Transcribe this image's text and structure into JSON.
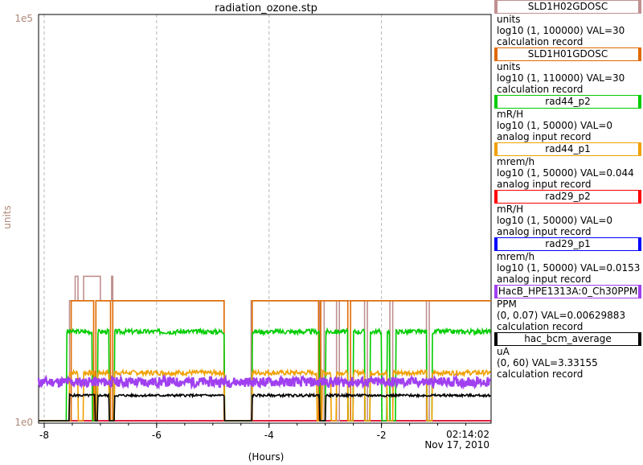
{
  "chart_data": {
    "type": "line",
    "title": "radiation_ozone.stp",
    "ylabel": "units",
    "xlabel": "(Hours)",
    "y_scale": "log",
    "ylim": [
      1,
      100000
    ],
    "xlim": [
      -8.1,
      -0.05
    ],
    "y_tick_labels": [
      "1e5",
      "1e0"
    ],
    "x_ticks": [
      -8,
      -6,
      -4,
      -2
    ],
    "timestamp": [
      "02:14:02",
      "Nov 17, 2010"
    ],
    "grid": true,
    "legend_position": "right",
    "series": [
      {
        "name": "SLD1H02GDOSC",
        "color": "#c09090",
        "kind": "step",
        "points": [
          [
            -8.1,
            1
          ],
          [
            -7.55,
            1
          ],
          [
            -7.55,
            30
          ],
          [
            -7.45,
            30
          ],
          [
            -7.45,
            60
          ],
          [
            -7.4,
            60
          ],
          [
            -7.4,
            30
          ],
          [
            -7.3,
            30
          ],
          [
            -7.3,
            60
          ],
          [
            -7.0,
            60
          ],
          [
            -7.0,
            30
          ],
          [
            -6.8,
            30
          ],
          [
            -6.8,
            60
          ],
          [
            -6.78,
            60
          ],
          [
            -6.78,
            30
          ],
          [
            -4.8,
            30
          ],
          [
            -4.8,
            1
          ],
          [
            -4.32,
            1
          ],
          [
            -4.32,
            30
          ],
          [
            -3.1,
            30
          ],
          [
            -3.1,
            1
          ],
          [
            -3.02,
            1
          ],
          [
            -3.02,
            30
          ],
          [
            -2.8,
            30
          ],
          [
            -2.8,
            1
          ],
          [
            -2.75,
            1
          ],
          [
            -2.75,
            30
          ],
          [
            -2.3,
            30
          ],
          [
            -2.3,
            1
          ],
          [
            -2.25,
            1
          ],
          [
            -2.25,
            30
          ],
          [
            -1.85,
            30
          ],
          [
            -1.85,
            1
          ],
          [
            -1.8,
            1
          ],
          [
            -1.8,
            30
          ],
          [
            -1.2,
            30
          ],
          [
            -1.2,
            1
          ],
          [
            -1.15,
            1
          ],
          [
            -1.15,
            30
          ],
          [
            -0.05,
            30
          ]
        ]
      },
      {
        "name": "SLD1H01GDOSC",
        "color": "#e06a00",
        "kind": "step",
        "points": [
          [
            -8.1,
            1
          ],
          [
            -7.52,
            1
          ],
          [
            -7.52,
            30
          ],
          [
            -7.12,
            30
          ],
          [
            -7.12,
            1
          ],
          [
            -7.08,
            1
          ],
          [
            -7.08,
            30
          ],
          [
            -6.82,
            30
          ],
          [
            -6.82,
            1
          ],
          [
            -6.78,
            1
          ],
          [
            -6.78,
            30
          ],
          [
            -4.8,
            30
          ],
          [
            -4.8,
            1
          ],
          [
            -4.3,
            1
          ],
          [
            -4.3,
            30
          ],
          [
            -3.12,
            30
          ],
          [
            -3.12,
            1
          ],
          [
            -3.08,
            1
          ],
          [
            -3.08,
            30
          ],
          [
            -2.6,
            30
          ],
          [
            -2.6,
            1
          ],
          [
            -2.55,
            1
          ],
          [
            -2.55,
            30
          ],
          [
            -0.05,
            30
          ]
        ]
      },
      {
        "name": "rad44_p2",
        "color": "#00cc00",
        "kind": "noisy",
        "level": 12.5,
        "gaps": [
          [
            -8.1,
            -7.6
          ],
          [
            -7.15,
            -7.05
          ],
          [
            -6.85,
            -6.75
          ],
          [
            -4.8,
            -4.3
          ],
          [
            -3.1,
            -3.0
          ],
          [
            -2.6,
            -2.5
          ],
          [
            -2.3,
            -2.2
          ],
          [
            -2.0,
            -1.9
          ],
          [
            -1.85,
            -1.75
          ],
          [
            -1.2,
            -1.1
          ],
          [
            -0.05,
            0
          ]
        ],
        "noise": 0.03,
        "seed": 3
      },
      {
        "name": "rad44_p1",
        "color": "#f0a000",
        "kind": "noisy",
        "level": 3.9,
        "gaps": [
          [
            -8.1,
            -7.55
          ],
          [
            -7.4,
            -7.3
          ],
          [
            -7.1,
            -7.05
          ],
          [
            -6.85,
            -6.75
          ],
          [
            -4.8,
            -4.3
          ],
          [
            -3.15,
            -3.05
          ],
          [
            -2.9,
            -2.8
          ],
          [
            -2.6,
            -2.5
          ],
          [
            -2.3,
            -2.2
          ],
          [
            -1.9,
            -1.8
          ],
          [
            -1.2,
            -1.1
          ],
          [
            -0.05,
            0
          ]
        ],
        "noise": 0.03,
        "seed": 7
      },
      {
        "name": "rad29_p2",
        "color": "#ff0000",
        "kind": "flat",
        "level": 1
      },
      {
        "name": "rad29_p1",
        "color": "#0000ff",
        "kind": "flat",
        "level": 1
      },
      {
        "name": "HacB_HPE1313A:0_Ch30PPM",
        "color": "#a040f0",
        "kind": "noisy",
        "level": 3.0,
        "gaps": [],
        "noise": 0.06,
        "seed": 11
      },
      {
        "name": "hac_bcm_average",
        "color": "#000000",
        "kind": "noisy",
        "level": 2.05,
        "gaps": [
          [
            -8.1,
            -7.55
          ],
          [
            -7.1,
            -7.05
          ],
          [
            -6.85,
            -6.75
          ],
          [
            -4.8,
            -4.3
          ],
          [
            -3.1,
            -3.0
          ],
          [
            -0.05,
            0
          ]
        ],
        "noise": 0.015,
        "seed": 5
      }
    ]
  },
  "legend": [
    {
      "name": "SLD1H02GDOSC",
      "border": "#c09090",
      "lines": [
        "units",
        "log10 (1, 100000) VAL=30",
        "calculation record"
      ]
    },
    {
      "name": "SLD1H01GDOSC",
      "border": "#e06a00",
      "lines": [
        "units",
        "log10 (1, 110000) VAL=30",
        "calculation record"
      ]
    },
    {
      "name": "rad44_p2",
      "border": "#00cc00",
      "lines": [
        "mR/H",
        "log10 (1, 50000) VAL=0",
        "analog input record"
      ]
    },
    {
      "name": "rad44_p1",
      "border": "#f0a000",
      "lines": [
        "mrem/h",
        "log10 (1, 50000) VAL=0.044",
        "analog input record"
      ]
    },
    {
      "name": "rad29_p2",
      "border": "#ff0000",
      "lines": [
        "mR/H",
        "log10 (1, 50000) VAL=0",
        "analog input record"
      ]
    },
    {
      "name": "rad29_p1",
      "border": "#0000ff",
      "lines": [
        "mrem/h",
        "log10 (1, 50000) VAL=0.0153",
        "analog input record"
      ]
    },
    {
      "name": "HacB_HPE1313A:0_Ch30PPM",
      "border": "#a040f0",
      "lines": [
        "PPM",
        "(0, 0.07) VAL=0.00629883",
        "calculation record"
      ]
    },
    {
      "name": "hac_bcm_average",
      "border": "#000000",
      "lines": [
        "uA",
        "(0, 60) VAL=3.33155",
        "calculation record"
      ]
    }
  ]
}
